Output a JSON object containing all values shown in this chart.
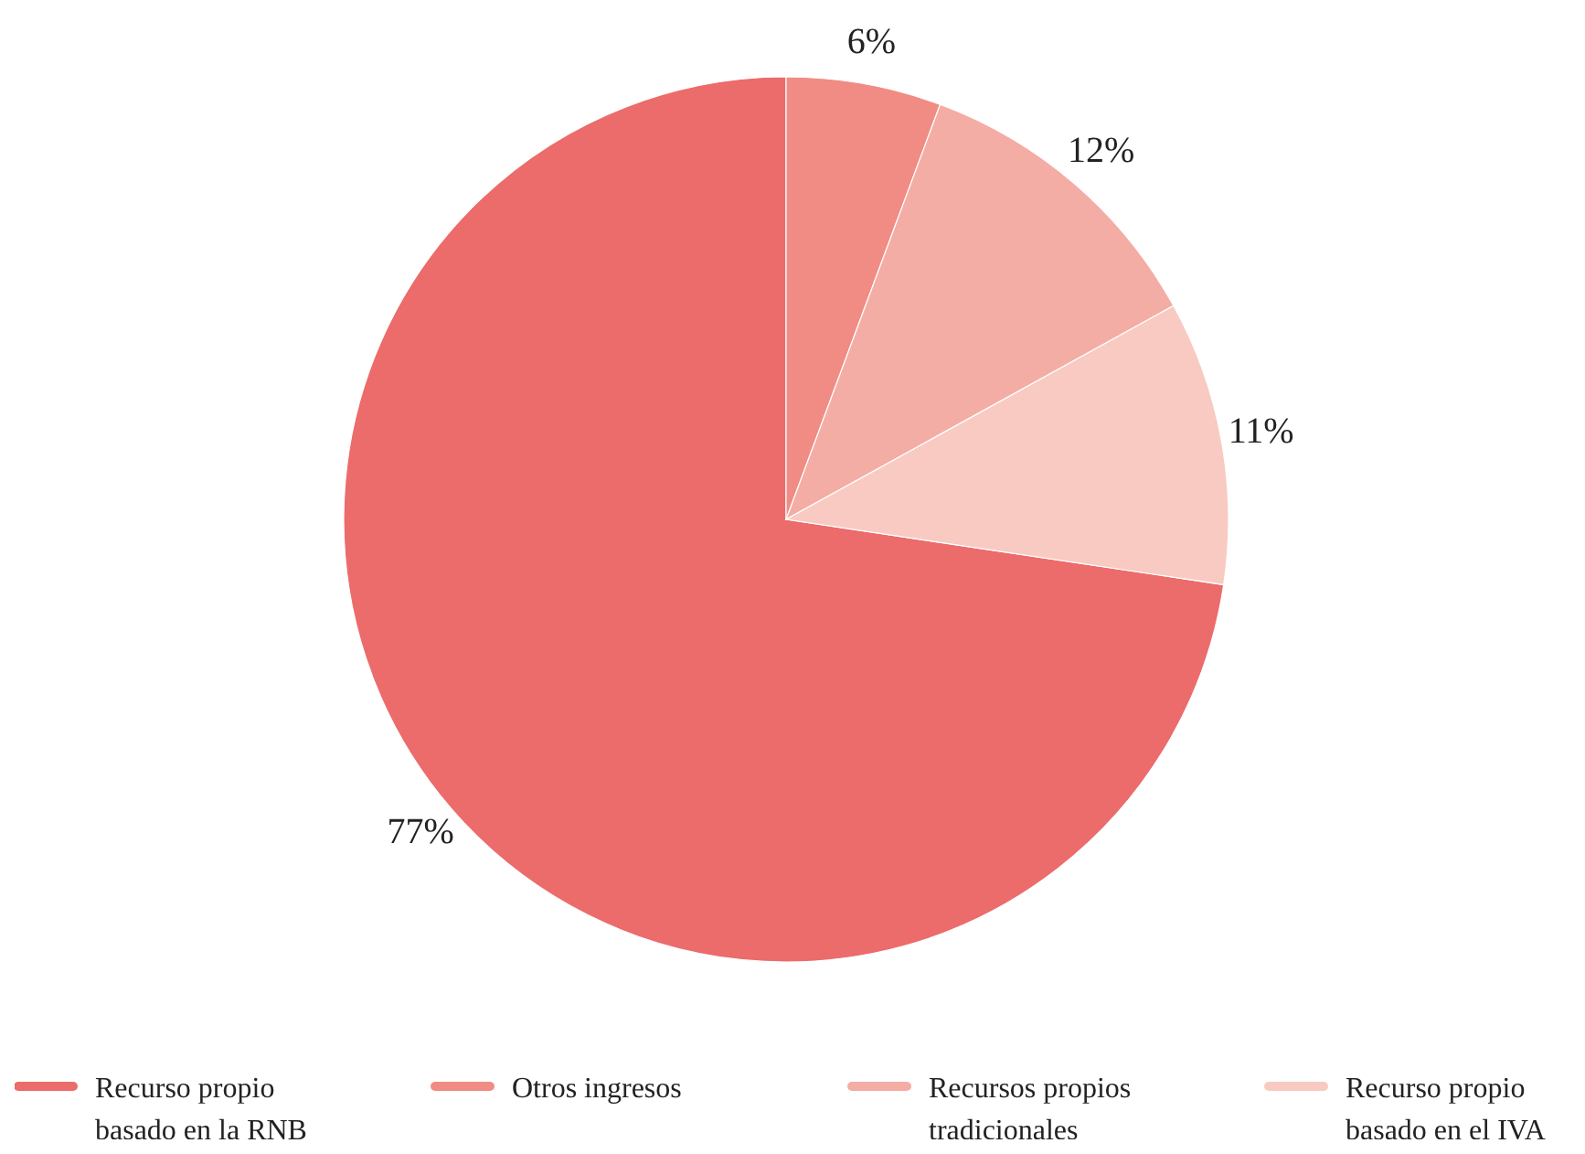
{
  "chart_data": {
    "type": "pie",
    "categories": [
      "Recurso propio basado en la RNB",
      "Otros ingresos",
      "Recursos propios tradicionales",
      "Recurso propio basado en el IVA"
    ],
    "values": [
      77,
      6,
      12,
      11
    ],
    "colors": [
      "#ec6b6b",
      "#f08c84",
      "#f4ada4",
      "#f8cac2"
    ],
    "value_labels": [
      "77%",
      "6%",
      "12%",
      "11%"
    ],
    "legend": "bottom"
  }
}
